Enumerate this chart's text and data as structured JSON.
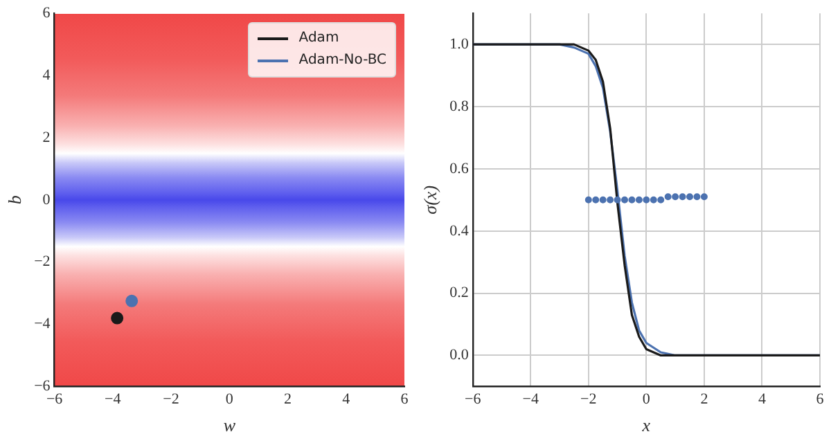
{
  "chart_data": [
    {
      "type": "scatter",
      "xlabel": "w",
      "ylabel": "b",
      "xlim": [
        -6,
        6
      ],
      "xticks": [
        -6,
        -4,
        -2,
        0,
        2,
        4,
        6
      ],
      "ylim": [
        -6,
        6
      ],
      "yticks": [
        -6,
        -4,
        -2,
        0,
        2,
        4,
        6
      ],
      "grid": false,
      "legend": "top right",
      "marker": "circle",
      "series": [
        {
          "name": "Adam",
          "color": "#1a1a1a",
          "x": [
            -3.85
          ],
          "values": [
            -3.8
          ]
        },
        {
          "name": "Adam-No-BC",
          "color": "#4c72b0",
          "x": [
            -3.35
          ],
          "values": [
            -3.25
          ]
        }
      ]
    },
    {
      "type": "line",
      "xlabel": "x",
      "ylabel": "σ(x)",
      "xlim": [
        -6,
        6
      ],
      "xticks": [
        -6,
        -4,
        -2,
        0,
        2,
        4,
        6
      ],
      "ylim": [
        -0.1,
        1.1
      ],
      "yticks": [
        {
          "value": 0,
          "label": "0.0"
        },
        0.2,
        0.4,
        0.6,
        0.8,
        {
          "value": 1,
          "label": "1.0"
        }
      ],
      "grid": true,
      "line_style": "solid",
      "series": [
        {
          "color": "#1a1a1a",
          "x": [
            -6,
            -3,
            -2.5,
            -2,
            -1.75,
            -1.5,
            -1.25,
            -1,
            -0.75,
            -0.5,
            -0.25,
            0,
            0.5,
            1,
            6
          ],
          "values": [
            1.0,
            1.0,
            1.0,
            0.98,
            0.95,
            0.88,
            0.73,
            0.49,
            0.29,
            0.13,
            0.06,
            0.02,
            0.0,
            0.0,
            0.0
          ]
        },
        {
          "color": "#4c72b0",
          "x": [
            -6,
            -3,
            -2.5,
            -2,
            -1.75,
            -1.5,
            -1.25,
            -1,
            -0.75,
            -0.5,
            -0.25,
            0,
            0.5,
            1,
            6
          ],
          "values": [
            1.0,
            1.0,
            0.99,
            0.97,
            0.93,
            0.86,
            0.72,
            0.53,
            0.32,
            0.17,
            0.08,
            0.04,
            0.01,
            0.0,
            0.0
          ]
        },
        {
          "type": "scatter",
          "color": "#4c72b0",
          "marker": "circle",
          "x": [
            -2,
            -1.75,
            -1.5,
            -1.25,
            -1,
            -0.75,
            -0.5,
            -0.25,
            0,
            0.25,
            0.5,
            0.75,
            1,
            1.25,
            1.5,
            1.75,
            2
          ],
          "values": [
            0.5,
            0.5,
            0.5,
            0.5,
            0.5,
            0.5,
            0.5,
            0.5,
            0.5,
            0.5,
            0.5,
            0.51,
            0.51,
            0.51,
            0.51,
            0.51,
            0.51
          ]
        }
      ]
    }
  ]
}
